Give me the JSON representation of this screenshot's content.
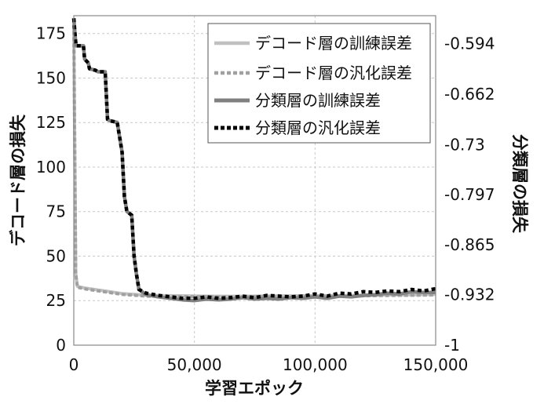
{
  "chart_data": {
    "type": "line",
    "xlabel": "学習エポック",
    "ylabel_left": "デコード層の損失",
    "ylabel_right": "分類層の損失",
    "xlim": [
      0,
      150000
    ],
    "ylim_left": [
      0,
      185
    ],
    "ylim_right": [
      -1.0,
      -0.5565
    ],
    "x_ticks": [
      0,
      50000,
      100000,
      150000
    ],
    "x_tick_labels": [
      "0",
      "50,000",
      "100,000",
      "150,000"
    ],
    "y_left_ticks": [
      0,
      25,
      50,
      75,
      100,
      125,
      150,
      175
    ],
    "y_left_tick_labels": [
      "0",
      "25",
      "50",
      "75",
      "100",
      "125",
      "150",
      "175"
    ],
    "y_right_ticks": [
      -1.0,
      -0.932,
      -0.865,
      -0.797,
      -0.73,
      -0.662,
      -0.594
    ],
    "y_right_tick_labels": [
      "-1",
      "-0.932",
      "-0.865",
      "-0.797",
      "-0.73",
      "-0.662",
      "-0.594"
    ],
    "grid": true,
    "legend_position": "top-right",
    "series": [
      {
        "name": "デコード層の訓練誤差",
        "axis": "left",
        "color": "#c0c0c0",
        "style": "solid",
        "x": [
          0,
          800,
          1500,
          5000,
          10000,
          15000,
          20000,
          25000,
          30000,
          40000,
          50000,
          60000,
          70000,
          80000,
          90000,
          100000,
          110000,
          120000,
          130000,
          140000,
          150000
        ],
        "values": [
          180,
          40,
          33,
          32,
          31,
          30,
          29,
          28.5,
          28,
          27.8,
          27.6,
          27.5,
          27.5,
          27.6,
          27.7,
          27.8,
          27.9,
          28,
          28.2,
          28.3,
          28.5
        ]
      },
      {
        "name": "デコード層の汎化誤差",
        "axis": "left",
        "color": "#a0a0a0",
        "style": "dotted",
        "x": [
          0,
          800,
          1500,
          5000,
          10000,
          15000,
          20000,
          25000,
          30000,
          40000,
          50000,
          60000,
          70000,
          80000,
          90000,
          100000,
          110000,
          120000,
          130000,
          140000,
          150000
        ],
        "values": [
          180,
          40,
          32.5,
          31.5,
          30.5,
          29.5,
          28.5,
          28,
          27.5,
          27.3,
          27.2,
          27.1,
          27.1,
          27.2,
          27.3,
          27.4,
          27.5,
          27.7,
          27.9,
          28,
          28.2
        ]
      },
      {
        "name": "分類層の訓練誤差",
        "axis": "right",
        "color": "#808080",
        "style": "solid",
        "x": [
          0,
          700,
          1000,
          4000,
          4500,
          6000,
          6500,
          9000,
          10000,
          13000,
          14000,
          15000,
          18000,
          19000,
          20000,
          21000,
          22000,
          24000,
          25000,
          26000,
          27000,
          30000,
          35000,
          40000,
          45000,
          50000,
          55000,
          60000,
          65000,
          70000,
          75000,
          80000,
          85000,
          90000,
          95000,
          100000,
          105000,
          110000,
          115000,
          120000,
          125000,
          130000,
          135000,
          140000,
          145000,
          150000
        ],
        "values": [
          -0.56,
          -0.59,
          -0.597,
          -0.597,
          -0.615,
          -0.62,
          -0.628,
          -0.63,
          -0.632,
          -0.632,
          -0.696,
          -0.698,
          -0.7,
          -0.72,
          -0.74,
          -0.8,
          -0.82,
          -0.825,
          -0.88,
          -0.905,
          -0.925,
          -0.932,
          -0.935,
          -0.937,
          -0.939,
          -0.94,
          -0.938,
          -0.939,
          -0.938,
          -0.936,
          -0.938,
          -0.937,
          -0.938,
          -0.936,
          -0.937,
          -0.935,
          -0.937,
          -0.934,
          -0.935,
          -0.933,
          -0.932,
          -0.93,
          -0.931,
          -0.928,
          -0.929,
          -0.929
        ]
      },
      {
        "name": "分類層の汎化誤差",
        "axis": "right",
        "color": "#000000",
        "style": "dotted",
        "x": [
          0,
          700,
          1000,
          4000,
          4500,
          6000,
          6500,
          9000,
          10000,
          13000,
          14000,
          15000,
          18000,
          19000,
          20000,
          21000,
          22000,
          24000,
          25000,
          26000,
          27000,
          30000,
          35000,
          40000,
          45000,
          50000,
          55000,
          60000,
          65000,
          70000,
          75000,
          80000,
          85000,
          90000,
          95000,
          100000,
          105000,
          110000,
          115000,
          120000,
          125000,
          130000,
          135000,
          140000,
          145000,
          150000
        ],
        "values": [
          -0.56,
          -0.59,
          -0.597,
          -0.597,
          -0.615,
          -0.62,
          -0.628,
          -0.63,
          -0.632,
          -0.632,
          -0.696,
          -0.698,
          -0.7,
          -0.72,
          -0.74,
          -0.8,
          -0.82,
          -0.825,
          -0.88,
          -0.905,
          -0.925,
          -0.93,
          -0.933,
          -0.935,
          -0.937,
          -0.937,
          -0.935,
          -0.937,
          -0.936,
          -0.934,
          -0.936,
          -0.933,
          -0.934,
          -0.935,
          -0.934,
          -0.931,
          -0.934,
          -0.93,
          -0.931,
          -0.928,
          -0.929,
          -0.927,
          -0.928,
          -0.925,
          -0.927,
          -0.924
        ]
      }
    ]
  }
}
